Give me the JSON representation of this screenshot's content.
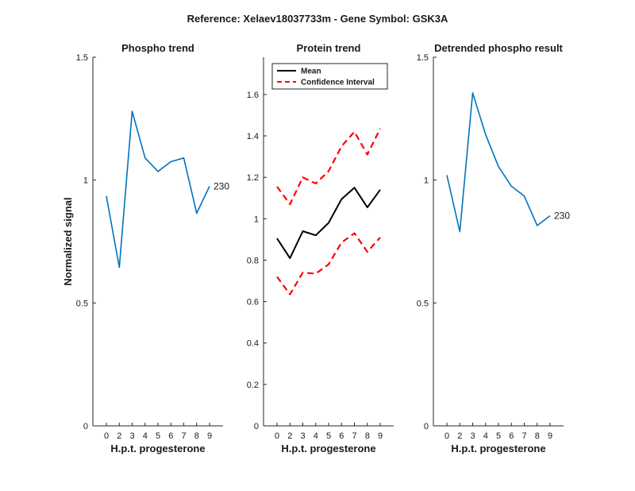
{
  "figure": {
    "title": "Reference:  Xelaev18037733m - Gene Symbol:  GSK3A"
  },
  "chart_data": [
    {
      "id": "phospho",
      "type": "line",
      "title": "Phospho trend",
      "xlabel": "H.p.t. progesterone",
      "ylabel": "Normalized signal",
      "categories": [
        "0",
        "2",
        "3",
        "4",
        "5",
        "6",
        "7",
        "8",
        "9"
      ],
      "ylim": [
        0,
        1.5
      ],
      "yticks": [
        0,
        0.5,
        1,
        1.5
      ],
      "ytick_labels": [
        "0",
        "0.5",
        "1",
        "1.5"
      ],
      "grid": false,
      "series": [
        {
          "values": [
            0.935,
            0.645,
            1.28,
            1.09,
            1.035,
            1.075,
            1.09,
            0.865,
            0.975
          ],
          "color": "#0072bd",
          "style": "solid"
        }
      ],
      "annotation": {
        "text": "230",
        "index": 8
      }
    },
    {
      "id": "protein",
      "type": "line",
      "title": "Protein trend",
      "xlabel": "H.p.t. progesterone",
      "ylabel": "",
      "categories": [
        "0",
        "2",
        "3",
        "4",
        "5",
        "6",
        "7",
        "8",
        "9"
      ],
      "ylim": [
        0,
        1.78
      ],
      "yticks": [
        0,
        0.2,
        0.4,
        0.6,
        0.8,
        1,
        1.2,
        1.4,
        1.6
      ],
      "ytick_labels": [
        "0",
        "0.2",
        "0.4",
        "0.6",
        "0.8",
        "1",
        "1.2",
        "1.4",
        "1.6"
      ],
      "grid": false,
      "legend": {
        "position": "top-left"
      },
      "series": [
        {
          "name": "Mean",
          "values": [
            0.905,
            0.81,
            0.94,
            0.92,
            0.98,
            1.095,
            1.15,
            1.055,
            1.14
          ],
          "color": "#000000",
          "style": "solid"
        },
        {
          "name": "Confidence Interval",
          "values": [
            1.155,
            1.07,
            1.2,
            1.17,
            1.23,
            1.35,
            1.42,
            1.31,
            1.435
          ],
          "color": "#ff0000",
          "style": "dashed"
        },
        {
          "values": [
            0.72,
            0.635,
            0.74,
            0.735,
            0.78,
            0.885,
            0.93,
            0.84,
            0.91
          ],
          "color": "#ff0000",
          "style": "dashed"
        }
      ]
    },
    {
      "id": "detrended",
      "type": "line",
      "title": "Detrended phospho result",
      "xlabel": "H.p.t. progesterone",
      "ylabel": "",
      "categories": [
        "0",
        "2",
        "3",
        "4",
        "5",
        "6",
        "7",
        "8",
        "9"
      ],
      "ylim": [
        0,
        1.5
      ],
      "yticks": [
        0,
        0.5,
        1,
        1.5
      ],
      "ytick_labels": [
        "0",
        "0.5",
        "1",
        "1.5"
      ],
      "grid": false,
      "series": [
        {
          "values": [
            1.02,
            0.79,
            1.355,
            1.185,
            1.055,
            0.975,
            0.935,
            0.815,
            0.855
          ],
          "color": "#0072bd",
          "style": "solid"
        }
      ],
      "annotation": {
        "text": "230",
        "index": 8
      }
    }
  ]
}
